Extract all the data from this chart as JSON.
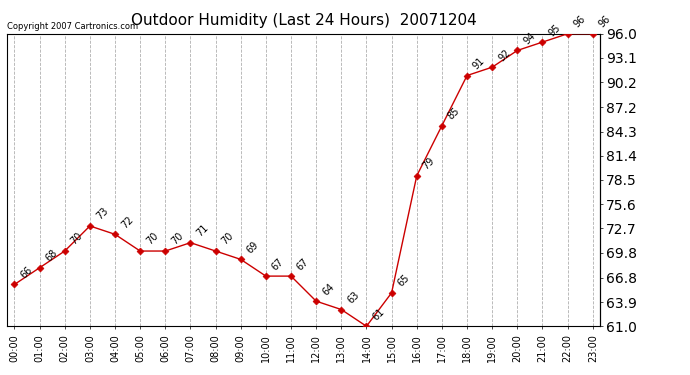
{
  "title": "Outdoor Humidity (Last 24 Hours)  20071204",
  "copyright": "Copyright 2007 Cartronics.com",
  "x_labels": [
    "00:00",
    "01:00",
    "02:00",
    "03:00",
    "04:00",
    "05:00",
    "06:00",
    "07:00",
    "08:00",
    "09:00",
    "10:00",
    "11:00",
    "12:00",
    "13:00",
    "14:00",
    "15:00",
    "16:00",
    "17:00",
    "18:00",
    "19:00",
    "20:00",
    "21:00",
    "22:00",
    "23:00"
  ],
  "x_values": [
    0,
    1,
    2,
    3,
    4,
    5,
    6,
    7,
    8,
    9,
    10,
    11,
    12,
    13,
    14,
    15,
    16,
    17,
    18,
    19,
    20,
    21,
    22,
    23
  ],
  "y_values": [
    66,
    68,
    70,
    73,
    72,
    70,
    70,
    71,
    70,
    69,
    67,
    67,
    64,
    63,
    61,
    65,
    79,
    85,
    91,
    92,
    94,
    95,
    96,
    96
  ],
  "y_labels": [
    96.0,
    93.1,
    90.2,
    87.2,
    84.3,
    81.4,
    78.5,
    75.6,
    72.7,
    69.8,
    66.8,
    63.9,
    61.0
  ],
  "ylim": [
    61.0,
    96.0
  ],
  "line_color": "#cc0000",
  "marker_color": "#cc0000",
  "bg_color": "#ffffff",
  "grid_color": "#b0b0b0",
  "title_fontsize": 11,
  "label_fontsize": 7,
  "annotation_fontsize": 7,
  "copyright_fontsize": 6
}
